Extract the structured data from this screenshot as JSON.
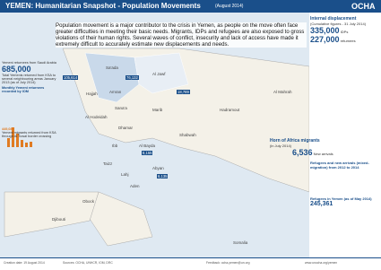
{
  "header": {
    "title": "YEMEN: Humanitarian Snapshot - Population Movements",
    "date": "(August 2014)",
    "logo": "OCHA"
  },
  "intro": "Population movement is a major contributor to the crisis in Yemen, as people on the move often face greater difficulties in meeting their basic needs. Migrants, IDPs and refugees are also exposed to gross violations of their human rights. Several waves of conflict, insecurity and lack of access have made it extremely difficult to accurately estimate new displacements and needs.",
  "left_panel": {
    "heading": "Yemeni returnees from Saudi Arabia",
    "total": "685,000",
    "total_note": "Total Yemenis returned from KSA to several neighbouring areas January 2013 (as of July 2014)",
    "chart_title": "Monthly Yemeni returnees recorded by IOM",
    "figure": "449,087",
    "figure_note": "Yemeni migrants returned from KSA through Al Tuwal border crossing"
  },
  "map_labels": [
    "Sa'ada",
    "Al Jawf",
    "Hajjah",
    "Amran",
    "Sana'a",
    "Al Hodeidah",
    "Marib",
    "Hadramout",
    "Shabwah",
    "Al Bayda",
    "Ibb",
    "Taizz",
    "Lahj",
    "Aden",
    "Abyan",
    "Dhamar",
    "Djibouti",
    "Obock",
    "Somalia",
    "Al Mahrah"
  ],
  "map_numbers": [
    "105,614",
    "76,132",
    "18,789",
    "8,155",
    "6,135"
  ],
  "right_panel": {
    "heading": "Internal displacement",
    "sub": "(Cumulative figures - 31 July 2014)",
    "idps": "335,000",
    "idps_label": "IDPs",
    "returnees": "227,000",
    "returnees_label": "returnees",
    "hoa_heading": "Horn of Africa migrants",
    "hoa_sub": "(in July 2014)",
    "new_arrivals": "6,536",
    "new_arrivals_label": "New arrivals",
    "refugees_heading": "Refugees and new arrivals (mixed-migration) from 2012 to 2014",
    "refugees_in_yemen": "Refugees in Yemen (as of May 2014)",
    "refugees_total": "245,361"
  },
  "footer": {
    "created": "Creation date: 19 August 2014",
    "sources": "Sources: OCHA, UNHCR, IOM, DRC",
    "feedback": "Feedback: ocha-yemen@un.org",
    "web": "www.unocha.org/yemen"
  }
}
